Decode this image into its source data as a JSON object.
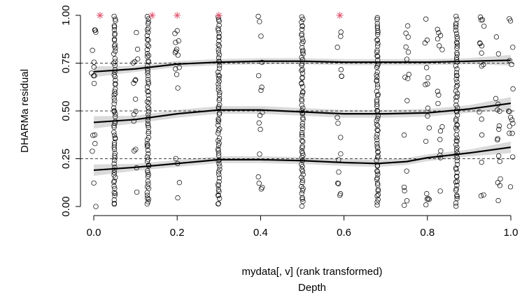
{
  "chart_data": {
    "type": "scatter",
    "title": "",
    "xlabel": "mydata[, v] (rank transformed)",
    "xlabel2": "Depth",
    "ylabel": "DHARMa residual",
    "xlim": [
      0,
      1
    ],
    "ylim": [
      0,
      1
    ],
    "x_ticks": [
      0.0,
      0.2,
      0.4,
      0.6,
      0.8,
      1.0
    ],
    "x_tick_labels": [
      "0.0",
      "0.2",
      "0.4",
      "0.6",
      "0.8",
      "1.0"
    ],
    "y_ticks": [
      0.0,
      0.25,
      0.5,
      0.75,
      1.0
    ],
    "y_tick_labels": [
      "0.00",
      "0.25",
      "0.50",
      "0.75",
      "1.00"
    ],
    "reference_lines": [
      0.25,
      0.5,
      0.75
    ],
    "colors": {
      "points": "#000000",
      "outliers": "#e0566f",
      "ribbon": "#d3d3d3",
      "lines": "#000000"
    },
    "column_positions": [
      0.0,
      0.05,
      0.1,
      0.13,
      0.2,
      0.3,
      0.4,
      0.5,
      0.59,
      0.68,
      0.75,
      0.8,
      0.83,
      0.87,
      0.93,
      0.97,
      1.0
    ],
    "outliers": [
      {
        "x": 0.015,
        "y": 1.0
      },
      {
        "x": 0.14,
        "y": 1.0
      },
      {
        "x": 0.2,
        "y": 1.0
      },
      {
        "x": 0.3,
        "y": 1.0
      },
      {
        "x": 0.59,
        "y": 1.0
      }
    ],
    "quantile_curves": [
      {
        "quantile": 0.25,
        "x": [
          0.0,
          0.1,
          0.2,
          0.3,
          0.4,
          0.5,
          0.6,
          0.68,
          0.75,
          0.8,
          0.9,
          1.0
        ],
        "y": [
          0.19,
          0.205,
          0.225,
          0.245,
          0.245,
          0.24,
          0.23,
          0.225,
          0.235,
          0.255,
          0.28,
          0.31
        ]
      },
      {
        "quantile": 0.5,
        "x": [
          0.0,
          0.1,
          0.2,
          0.3,
          0.4,
          0.5,
          0.6,
          0.7,
          0.8,
          0.9,
          1.0
        ],
        "y": [
          0.44,
          0.455,
          0.485,
          0.505,
          0.505,
          0.495,
          0.485,
          0.485,
          0.49,
          0.51,
          0.54
        ]
      },
      {
        "quantile": 0.75,
        "x": [
          0.0,
          0.1,
          0.2,
          0.3,
          0.4,
          0.5,
          0.6,
          0.7,
          0.8,
          0.9,
          1.0
        ],
        "y": [
          0.705,
          0.72,
          0.745,
          0.755,
          0.76,
          0.76,
          0.755,
          0.755,
          0.755,
          0.76,
          0.765
        ]
      }
    ],
    "grid": false,
    "legend": "none"
  }
}
